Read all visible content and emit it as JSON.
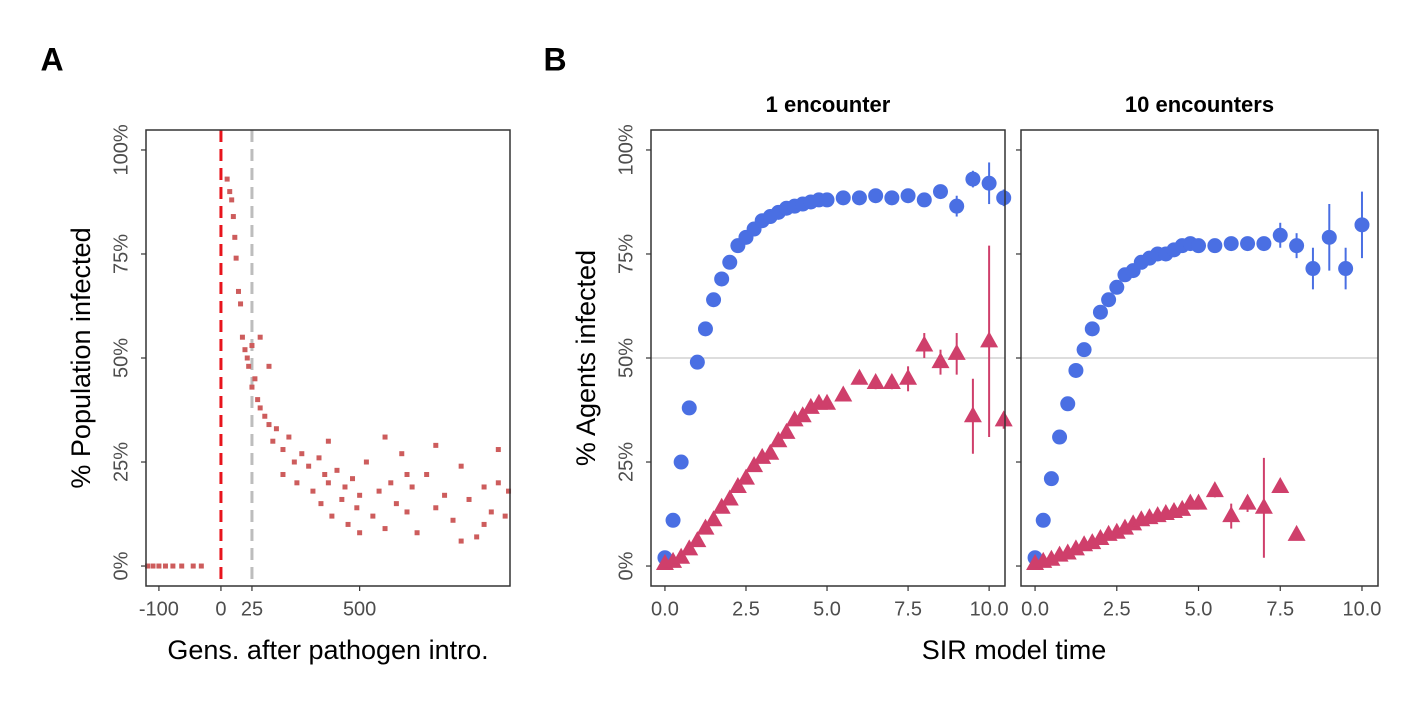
{
  "chart_data": [
    {
      "type": "scatter",
      "panel": "A",
      "xlabel": "Gens. after pathogen intro.",
      "ylabel": "% Population infected",
      "xscale": "sqrt",
      "color": "#cd5c5c",
      "xlim": [
        -146,
        2172
      ],
      "ylim": [
        -4.8,
        104.8
      ],
      "xticks": [
        -100,
        0,
        25,
        500
      ],
      "yticks": [
        {
          "value": 0,
          "label": "0%"
        },
        {
          "value": 25,
          "label": "25%"
        },
        {
          "value": 50,
          "label": "50%"
        },
        {
          "value": 75,
          "label": "75%"
        },
        {
          "value": 100,
          "label": "100%"
        }
      ],
      "vlines": [
        {
          "value": 0,
          "color": "#e8141c"
        },
        {
          "value": 25,
          "color": "#bdbdbd"
        }
      ],
      "x": [
        -140,
        -120,
        -100,
        -80,
        -60,
        -40,
        -20,
        -10,
        1,
        2,
        3,
        4,
        5,
        6,
        8,
        10,
        12,
        15,
        18,
        20,
        25,
        25,
        30,
        35,
        40,
        40,
        50,
        60,
        60,
        70,
        80,
        100,
        100,
        120,
        140,
        150,
        170,
        200,
        220,
        250,
        260,
        280,
        300,
        300,
        320,
        350,
        380,
        400,
        420,
        450,
        480,
        500,
        500,
        550,
        600,
        650,
        700,
        700,
        750,
        800,
        850,
        900,
        900,
        950,
        1000,
        1100,
        1200,
        1200,
        1300,
        1400,
        1500,
        1500,
        1600,
        1700,
        1800,
        1800,
        1900,
        2000,
        2000,
        2100,
        2150
      ],
      "values": [
        0,
        0,
        0,
        0,
        0,
        0,
        0,
        0,
        93,
        90,
        88,
        84,
        79,
        74,
        66,
        63,
        55,
        52,
        50,
        48,
        43,
        53,
        45,
        40,
        38,
        55,
        36,
        34,
        48,
        30,
        33,
        28,
        22,
        31,
        25,
        20,
        27,
        24,
        18,
        26,
        15,
        22,
        20,
        30,
        12,
        23,
        16,
        19,
        10,
        21,
        14,
        17,
        8,
        25,
        12,
        18,
        9,
        31,
        20,
        15,
        27,
        13,
        22,
        19,
        8,
        22,
        14,
        29,
        17,
        11,
        24,
        6,
        16,
        7,
        19,
        10,
        13,
        28,
        20,
        12,
        18
      ]
    },
    {
      "type": "scatter",
      "panel": "B",
      "title": "1 encounter",
      "xlabel": "SIR model time",
      "ylabel": "% Agents infected",
      "hline": 50,
      "xlim": [
        -0.43,
        10.49
      ],
      "ylim": [
        -4.8,
        104.8
      ],
      "xticks": [
        {
          "value": 0,
          "label": "0.0"
        },
        {
          "value": 2.5,
          "label": "2.5"
        },
        {
          "value": 5,
          "label": "5.0"
        },
        {
          "value": 7.5,
          "label": "7.5"
        },
        {
          "value": 10,
          "label": "10.0"
        }
      ],
      "yticks": [
        {
          "value": 0,
          "label": "0%"
        },
        {
          "value": 25,
          "label": "25%"
        },
        {
          "value": 50,
          "label": "50%"
        },
        {
          "value": 75,
          "label": "75%"
        },
        {
          "value": 100,
          "label": "100%"
        }
      ],
      "x": [
        0,
        0.25,
        0.5,
        0.75,
        1,
        1.25,
        1.5,
        1.75,
        2,
        2.25,
        2.5,
        2.75,
        3,
        3.25,
        3.5,
        3.75,
        4,
        4.25,
        4.5,
        4.75,
        5,
        5.5,
        6,
        6.5,
        7,
        7.5,
        8,
        8.5,
        9,
        9.5,
        10,
        10.45
      ],
      "series": [
        {
          "marker": "circle",
          "color": "#4a6fe3",
          "values": [
            2,
            11,
            25,
            38,
            49,
            57,
            64,
            69,
            73,
            77,
            79,
            81,
            83,
            84,
            85,
            86,
            86.5,
            87,
            87.5,
            88,
            88,
            88.5,
            88.5,
            89,
            88.5,
            89,
            88,
            90,
            86.5,
            93,
            92,
            88.5
          ],
          "errors": [
            0.5,
            0.8,
            1,
            1,
            1,
            1,
            1,
            1,
            1,
            1,
            1,
            1,
            1,
            1,
            1,
            1,
            1,
            1,
            1,
            1,
            1,
            1,
            1,
            1,
            1,
            1,
            1.5,
            1.5,
            2.5,
            2,
            5,
            2
          ]
        },
        {
          "marker": "triangle",
          "color": "#cf3f6b",
          "values": [
            0.5,
            1,
            2,
            4,
            6,
            9,
            11,
            14,
            16,
            19,
            21,
            24,
            26,
            27,
            30,
            32,
            35,
            36,
            38,
            39,
            39,
            41,
            45,
            44,
            44,
            45,
            53,
            49,
            51,
            36,
            54,
            35
          ],
          "errors": [
            0.3,
            0.5,
            0.5,
            0.5,
            0.5,
            0.5,
            0.5,
            0.5,
            0.5,
            0.5,
            0.5,
            0.5,
            0.5,
            0.5,
            0.5,
            0.5,
            1,
            1,
            1,
            1,
            1,
            1,
            1,
            1.5,
            1.5,
            3,
            3,
            3,
            5,
            9,
            23,
            2
          ]
        }
      ]
    },
    {
      "type": "scatter",
      "panel": "B",
      "title": "10 encounters",
      "hline": 50,
      "xlim": [
        -0.43,
        10.49
      ],
      "ylim": [
        -4.8,
        104.8
      ],
      "xticks": [
        {
          "value": 0,
          "label": "0.0"
        },
        {
          "value": 2.5,
          "label": "2.5"
        },
        {
          "value": 5,
          "label": "5.0"
        },
        {
          "value": 7.5,
          "label": "7.5"
        },
        {
          "value": 10,
          "label": "10.0"
        }
      ],
      "yticks": [
        0,
        25,
        50,
        75,
        100
      ],
      "x": [
        0,
        0.25,
        0.5,
        0.75,
        1,
        1.25,
        1.5,
        1.75,
        2,
        2.25,
        2.5,
        2.75,
        3,
        3.25,
        3.5,
        3.75,
        4,
        4.25,
        4.5,
        4.75,
        5,
        5.5,
        6,
        6.5,
        7,
        7.5,
        8,
        8.5,
        9,
        9.5,
        10
      ],
      "series": [
        {
          "marker": "circle",
          "color": "#4a6fe3",
          "values": [
            2,
            11,
            21,
            31,
            39,
            47,
            52,
            57,
            61,
            64,
            67,
            70,
            71,
            73,
            74,
            75,
            75,
            76,
            77,
            77.5,
            77,
            77,
            77.5,
            77.5,
            77.5,
            79.5,
            77,
            71.5,
            79,
            71.5,
            82
          ],
          "errors": [
            0.5,
            0.8,
            1,
            1,
            1,
            1,
            1,
            1,
            1,
            1,
            1,
            1,
            1,
            1,
            1,
            1,
            1,
            1,
            1,
            1,
            1,
            1,
            1,
            1,
            1,
            3,
            3,
            5,
            8,
            5,
            8
          ]
        },
        {
          "marker": "triangle",
          "color": "#cf3f6b",
          "values": [
            0.5,
            1,
            1.5,
            2.5,
            3,
            4,
            5,
            5.5,
            6.5,
            7.5,
            8,
            9,
            10,
            11,
            11.5,
            12,
            12.5,
            13,
            13.5,
            15,
            15,
            18,
            12,
            15,
            14,
            19,
            7.5,
            null,
            null,
            null,
            null
          ],
          "errors": [
            0.2,
            0.3,
            0.3,
            0.3,
            0.3,
            0.4,
            0.4,
            0.4,
            0.5,
            0.5,
            0.5,
            0.5,
            0.5,
            0.6,
            0.6,
            0.7,
            0.8,
            0.8,
            1,
            1,
            1,
            1.5,
            3,
            2,
            12,
            1,
            1,
            null,
            null,
            null,
            null
          ]
        }
      ]
    }
  ]
}
